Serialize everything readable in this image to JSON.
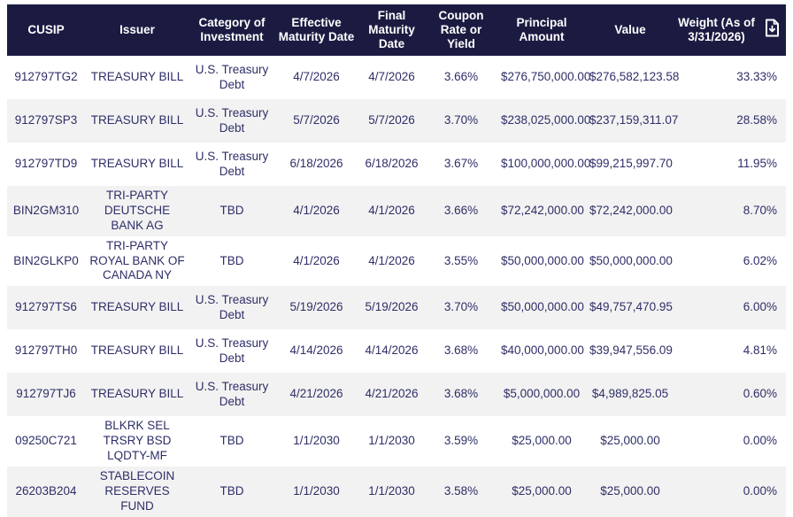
{
  "colors": {
    "header_bg": "#1b1b42",
    "header_text": "#ffffff",
    "cell_text": "#2e2e68",
    "stripe_bg": "#f2f2f2",
    "row_bg": "#ffffff"
  },
  "table": {
    "headers": [
      "CUSIP",
      "Issuer",
      "Category of Investment",
      "Effective Maturity Date",
      "Final Maturity Date",
      "Coupon Rate or Yield",
      "Principal Amount",
      "Value",
      "Weight (As of 3/31/2026)"
    ],
    "download_icon": "download-file-icon",
    "rows": [
      {
        "cusip": "912797TG2",
        "issuer": "TREASURY BILL",
        "category_of_investment": "U.S. Treasury Debt",
        "effective_maturity_date": "4/7/2026",
        "final_maturity_date": "4/7/2026",
        "coupon_rate_or_yield": "3.66%",
        "principal_amount": "$276,750,000.00",
        "value": "$276,582,123.58",
        "weight": "33.33%"
      },
      {
        "cusip": "912797SP3",
        "issuer": "TREASURY BILL",
        "category_of_investment": "U.S. Treasury Debt",
        "effective_maturity_date": "5/7/2026",
        "final_maturity_date": "5/7/2026",
        "coupon_rate_or_yield": "3.70%",
        "principal_amount": "$238,025,000.00",
        "value": "$237,159,311.07",
        "weight": "28.58%"
      },
      {
        "cusip": "912797TD9",
        "issuer": "TREASURY BILL",
        "category_of_investment": "U.S. Treasury Debt",
        "effective_maturity_date": "6/18/2026",
        "final_maturity_date": "6/18/2026",
        "coupon_rate_or_yield": "3.67%",
        "principal_amount": "$100,000,000.00",
        "value": "$99,215,997.70",
        "weight": "11.95%"
      },
      {
        "cusip": "BIN2GM310",
        "issuer": "TRI-PARTY DEUTSCHE BANK AG",
        "category_of_investment": "TBD",
        "effective_maturity_date": "4/1/2026",
        "final_maturity_date": "4/1/2026",
        "coupon_rate_or_yield": "3.66%",
        "principal_amount": "$72,242,000.00",
        "value": "$72,242,000.00",
        "weight": "8.70%"
      },
      {
        "cusip": "BIN2GLKP0",
        "issuer": "TRI-PARTY ROYAL BANK OF CANADA NY",
        "category_of_investment": "TBD",
        "effective_maturity_date": "4/1/2026",
        "final_maturity_date": "4/1/2026",
        "coupon_rate_or_yield": "3.55%",
        "principal_amount": "$50,000,000.00",
        "value": "$50,000,000.00",
        "weight": "6.02%"
      },
      {
        "cusip": "912797TS6",
        "issuer": "TREASURY BILL",
        "category_of_investment": "U.S. Treasury Debt",
        "effective_maturity_date": "5/19/2026",
        "final_maturity_date": "5/19/2026",
        "coupon_rate_or_yield": "3.70%",
        "principal_amount": "$50,000,000.00",
        "value": "$49,757,470.95",
        "weight": "6.00%"
      },
      {
        "cusip": "912797TH0",
        "issuer": "TREASURY BILL",
        "category_of_investment": "U.S. Treasury Debt",
        "effective_maturity_date": "4/14/2026",
        "final_maturity_date": "4/14/2026",
        "coupon_rate_or_yield": "3.68%",
        "principal_amount": "$40,000,000.00",
        "value": "$39,947,556.09",
        "weight": "4.81%"
      },
      {
        "cusip": "912797TJ6",
        "issuer": "TREASURY BILL",
        "category_of_investment": "U.S. Treasury Debt",
        "effective_maturity_date": "4/21/2026",
        "final_maturity_date": "4/21/2026",
        "coupon_rate_or_yield": "3.68%",
        "principal_amount": "$5,000,000.00",
        "value": "$4,989,825.05",
        "weight": "0.60%"
      },
      {
        "cusip": "09250C721",
        "issuer": "BLKRK SEL TRSRY BSD LQDTY-MF",
        "category_of_investment": "TBD",
        "effective_maturity_date": "1/1/2030",
        "final_maturity_date": "1/1/2030",
        "coupon_rate_or_yield": "3.59%",
        "principal_amount": "$25,000.00",
        "value": "$25,000.00",
        "weight": "0.00%"
      },
      {
        "cusip": "26203B204",
        "issuer": "STABLECOIN RESERVES FUND",
        "category_of_investment": "TBD",
        "effective_maturity_date": "1/1/2030",
        "final_maturity_date": "1/1/2030",
        "coupon_rate_or_yield": "3.58%",
        "principal_amount": "$25,000.00",
        "value": "$25,000.00",
        "weight": "0.00%"
      }
    ]
  }
}
